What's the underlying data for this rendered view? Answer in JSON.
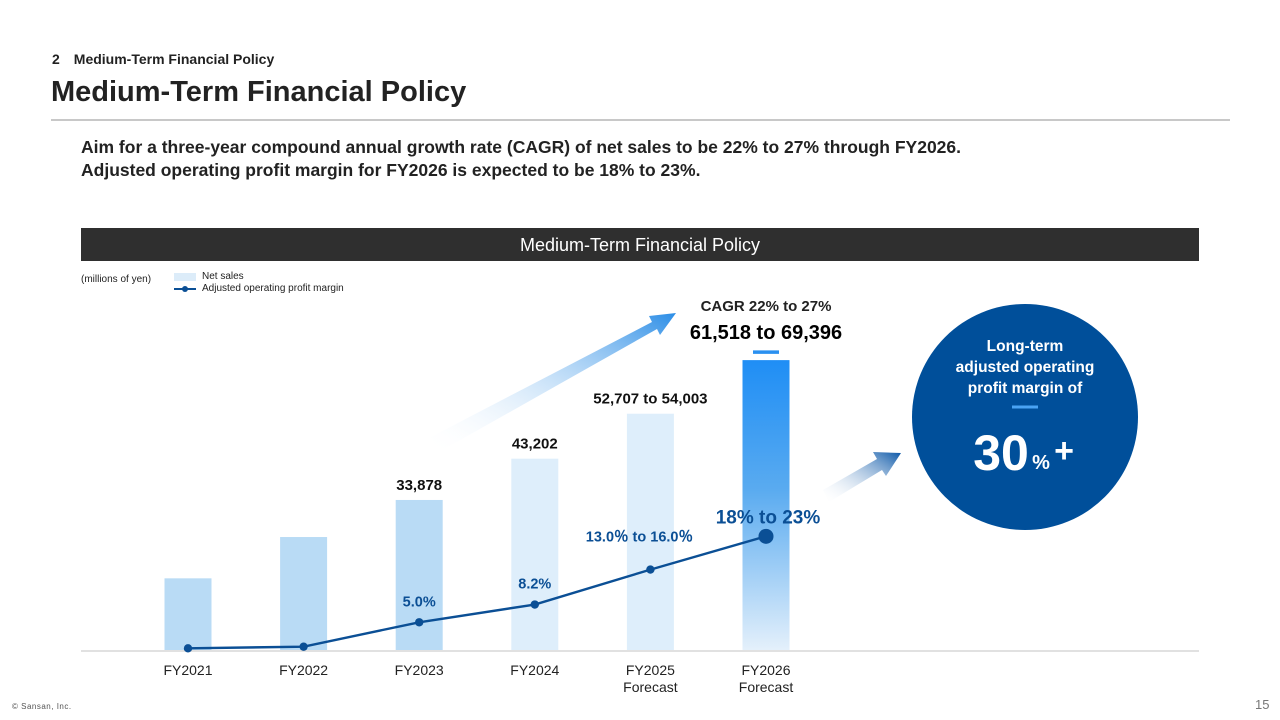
{
  "header": {
    "section_number": "2",
    "section_title": "Medium-Term Financial Policy",
    "page_title": "Medium-Term Financial Policy"
  },
  "lead": {
    "line1": "Aim for a three-year compound annual growth rate (CAGR) of net sales to be 22% to 27% through FY2026.",
    "line2": "Adjusted operating profit margin for FY2026 is expected to be 18% to 23%."
  },
  "banner": "Medium-Term Financial Policy",
  "unit_label": "(millions of yen)",
  "legend": {
    "net_sales": "Net sales",
    "margin": "Adjusted operating profit margin"
  },
  "cagr_label": "CAGR 22% to 27%",
  "long_term": {
    "line1": "Long-term",
    "line2": "adjusted operating",
    "line3": "profit margin of",
    "value": "30",
    "unit": "%",
    "plus": "+"
  },
  "colors": {
    "bar_light": "#b9dbf5",
    "bar_forecast": "#deeefb",
    "bar_target": "#2491f5",
    "line": "#0b4f95",
    "circle": "#004f9a",
    "banner": "#2f2f2f"
  },
  "chart_data": {
    "type": "bar",
    "categories": [
      [
        "FY2021"
      ],
      [
        "FY2022"
      ],
      [
        "FY2023"
      ],
      [
        "FY2024"
      ],
      [
        "FY2025",
        "Forecast"
      ],
      [
        "FY2026",
        "Forecast"
      ]
    ],
    "series": [
      {
        "name": "Net sales",
        "type": "bar",
        "values": [
          16184,
          25510,
          33878,
          43202,
          53355,
          65457
        ],
        "value_labels": [
          "",
          "",
          "33,878",
          "43,202",
          "52,707 to 54,003",
          "61,518 to 69,396"
        ]
      },
      {
        "name": "Adjusted operating profit margin",
        "type": "line",
        "values": [
          0.3,
          0.6,
          5.0,
          8.2,
          14.5,
          20.5
        ],
        "value_labels": [
          "",
          "",
          "5.0%",
          "8.2%",
          "13.0％ to 16.0％",
          "18% to 23%"
        ]
      }
    ],
    "ylim": [
      0,
      70000
    ],
    "y2lim": [
      0,
      55
    ]
  },
  "footer": {
    "copyright": "© Sansan, Inc.",
    "page_number": "15"
  }
}
